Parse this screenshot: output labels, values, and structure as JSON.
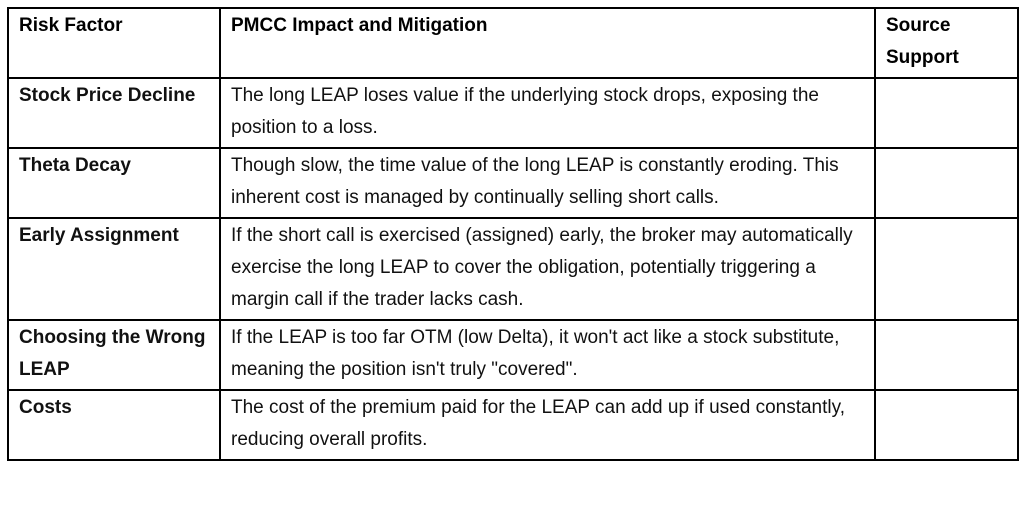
{
  "table": {
    "headers": {
      "risk": "Risk Factor",
      "impact": "PMCC Impact and Mitigation",
      "source": "Source Support"
    },
    "rows": [
      {
        "risk": "Stock Price Decline",
        "impact": "The long LEAP loses value if the underlying stock drops, exposing the position to a loss.",
        "source": ""
      },
      {
        "risk": "Theta Decay",
        "impact": "Though slow, the time value of the long LEAP is constantly eroding. This inherent cost is managed by continually selling short calls.",
        "source": ""
      },
      {
        "risk": "Early Assignment",
        "impact": "If the short call is exercised (assigned) early, the broker may automatically exercise the long LEAP to cover the obligation, potentially triggering a margin call if the trader lacks cash.",
        "source": ""
      },
      {
        "risk": "Choosing the Wrong LEAP",
        "impact": "If the LEAP is too far OTM (low Delta), it won't act like a stock substitute, meaning the position isn't truly \"covered\".",
        "source": ""
      },
      {
        "risk": "Costs",
        "impact": "The cost of the premium paid for the LEAP can add up if used constantly, reducing overall profits.",
        "source": ""
      }
    ]
  }
}
